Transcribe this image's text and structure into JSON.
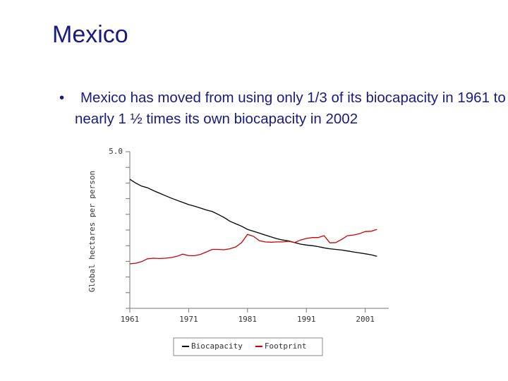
{
  "slide": {
    "title": "Mexico",
    "bullet": "Mexico has moved from using only 1/3 of its biocapacity in 1961 to nearly 1 ½ times its own biocapacity in 2002"
  },
  "chart_data": {
    "type": "line",
    "ylabel": "Global hectares per person",
    "x": [
      1961,
      1962,
      1963,
      1964,
      1965,
      1966,
      1967,
      1968,
      1969,
      1970,
      1971,
      1972,
      1973,
      1974,
      1975,
      1976,
      1977,
      1978,
      1979,
      1980,
      1981,
      1982,
      1983,
      1984,
      1985,
      1986,
      1987,
      1988,
      1989,
      1990,
      1991,
      1992,
      1993,
      1994,
      1995,
      1996,
      1997,
      1998,
      1999,
      2000,
      2001,
      2002,
      2003
    ],
    "series": [
      {
        "name": "Biocapacity",
        "color": "#000000",
        "values": [
          4.12,
          4.0,
          3.9,
          3.85,
          3.76,
          3.68,
          3.6,
          3.52,
          3.45,
          3.38,
          3.31,
          3.26,
          3.2,
          3.14,
          3.09,
          3.0,
          2.9,
          2.78,
          2.7,
          2.62,
          2.52,
          2.46,
          2.4,
          2.34,
          2.28,
          2.22,
          2.18,
          2.15,
          2.1,
          2.05,
          2.02,
          2.0,
          1.97,
          1.93,
          1.9,
          1.88,
          1.86,
          1.83,
          1.8,
          1.77,
          1.74,
          1.71,
          1.66
        ]
      },
      {
        "name": "Footprint",
        "color": "#cc0000",
        "values": [
          1.42,
          1.44,
          1.49,
          1.58,
          1.6,
          1.59,
          1.6,
          1.62,
          1.66,
          1.73,
          1.68,
          1.68,
          1.72,
          1.8,
          1.88,
          1.88,
          1.87,
          1.9,
          1.96,
          2.1,
          2.36,
          2.3,
          2.16,
          2.12,
          2.11,
          2.12,
          2.12,
          2.14,
          2.1,
          2.18,
          2.23,
          2.26,
          2.26,
          2.32,
          2.09,
          2.1,
          2.2,
          2.32,
          2.34,
          2.38,
          2.45,
          2.46,
          2.52
        ]
      }
    ],
    "xlim": [
      1961,
      2005
    ],
    "ylim": [
      0,
      5
    ],
    "xticks": [
      1961,
      1971,
      1981,
      1991,
      2001
    ],
    "yticks": [
      {
        "value": 5,
        "label": "5.0"
      }
    ],
    "yminorticks": [
      0,
      0.5,
      1,
      1.5,
      2,
      2.5,
      3,
      3.5,
      4,
      4.5
    ],
    "legend": "bottom"
  }
}
